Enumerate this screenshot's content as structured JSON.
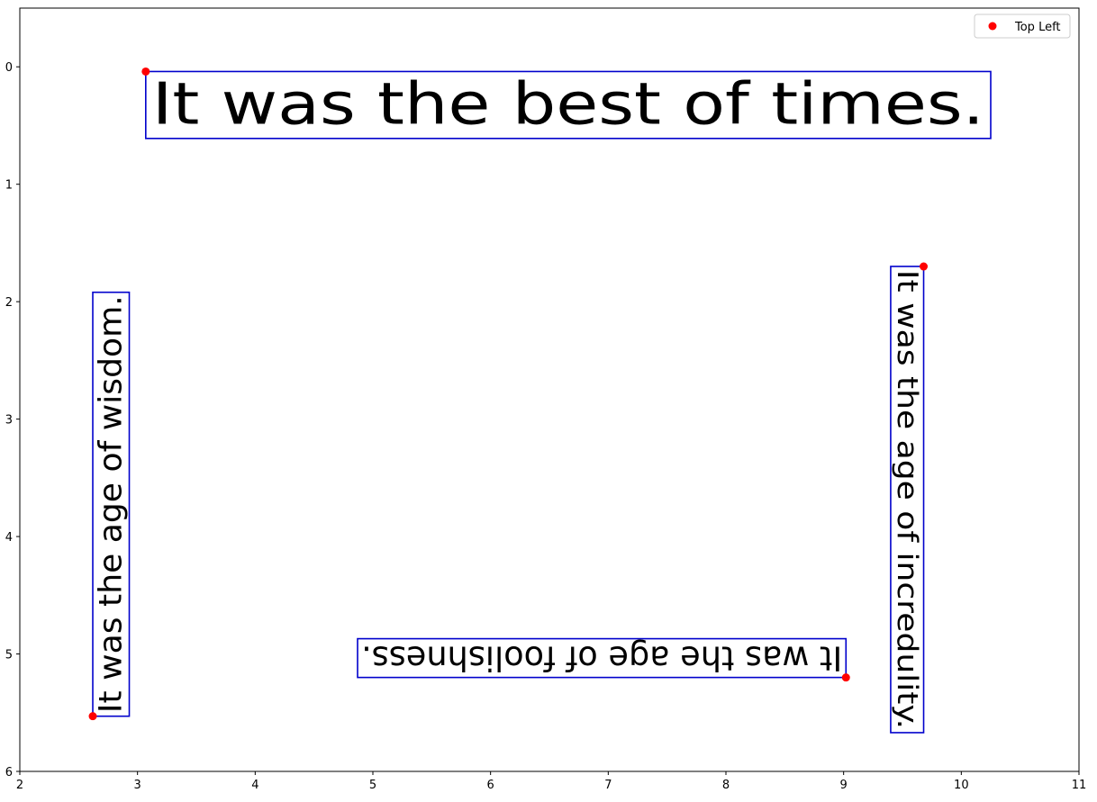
{
  "chart_data": {
    "type": "scatter",
    "title": "",
    "xlabel": "",
    "ylabel": "",
    "xlim": [
      2,
      11
    ],
    "ylim": [
      6,
      -0.5
    ],
    "y_inverted": true,
    "x_ticks": [
      "2",
      "3",
      "4",
      "5",
      "6",
      "7",
      "8",
      "9",
      "10",
      "11"
    ],
    "y_ticks": [
      "0",
      "1",
      "2",
      "3",
      "4",
      "5",
      "6"
    ],
    "grid": false,
    "legend": {
      "placement": "top-right",
      "entries": [
        "Top Left"
      ]
    },
    "marker_color": "#ff0000",
    "box_color": "#0000cc",
    "text_boxes": [
      {
        "text": "It was the best of times.",
        "rotation_deg": 0,
        "top_left": [
          3.07,
          0.04
        ],
        "box_x": [
          3.07,
          10.25
        ],
        "box_y": [
          0.04,
          0.61
        ]
      },
      {
        "text": "It was the age of wisdom.",
        "rotation_deg": -90,
        "top_left": [
          2.62,
          5.53
        ],
        "box_x": [
          2.62,
          2.93
        ],
        "box_y": [
          1.92,
          5.53
        ]
      },
      {
        "text": "It was the age of foolishness.",
        "rotation_deg": 180,
        "top_left": [
          9.02,
          5.2
        ],
        "box_x": [
          4.87,
          9.02
        ],
        "box_y": [
          4.87,
          5.2
        ]
      },
      {
        "text": "It was the age of incredulity.",
        "rotation_deg": 90,
        "top_left": [
          9.68,
          1.7
        ],
        "box_x": [
          9.4,
          9.68
        ],
        "box_y": [
          1.7,
          5.67
        ]
      }
    ]
  }
}
